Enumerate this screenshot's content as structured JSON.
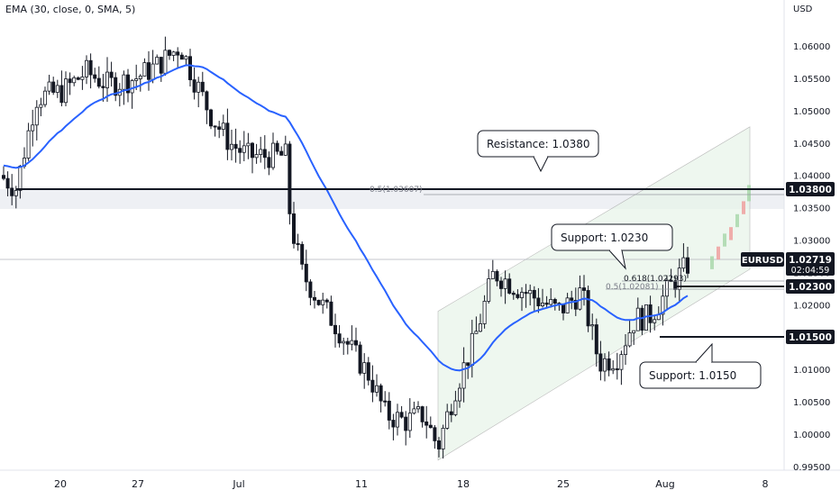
{
  "indicator": {
    "legend": "EMA (30, close, 0, SMA, 5)"
  },
  "price_axis": {
    "currency": "USD",
    "ticks": [
      "1.06000",
      "1.05500",
      "1.05000",
      "1.04500",
      "1.04000",
      "1.03500",
      "1.03000",
      "1.02500",
      "1.02000",
      "1.01500",
      "1.01000",
      "1.00500",
      "1.00000",
      "0.99500"
    ]
  },
  "time_axis": {
    "ticks": [
      "20",
      "27",
      "Jul",
      "11",
      "18",
      "25",
      "Aug",
      "8"
    ]
  },
  "symbol": {
    "name": "EURUSD",
    "price": "1.02719",
    "countdown": "02:04:59",
    "color": "#131722"
  },
  "levels": [
    {
      "label": "1.03800",
      "value": 1.038
    },
    {
      "label": "1.02300",
      "value": 1.023
    },
    {
      "label": "1.01500",
      "value": 1.015
    }
  ],
  "callouts": {
    "resistance": "Resistance: 1.0380",
    "support_upper": "Support: 1.0230",
    "support_lower": "Support: 1.0150"
  },
  "fib_labels": {
    "left_half": "0.5(1.03607)",
    "right_618": "0.618(1.02293)",
    "right_half": "0.5(1.02081)"
  },
  "colors": {
    "candle": "#131722",
    "ema": "#2962ff",
    "channel_fill": "#e8f5e9",
    "zone_fill": "#e0e3eb",
    "projection_up": "#a5d6a7",
    "projection_down": "#ef9a9a"
  },
  "chart_data": {
    "type": "candlestick",
    "ylim": [
      0.9945,
      1.0645
    ],
    "ema_series": {
      "name": "EMA (30, close, 0, SMA, 5)",
      "period": 30
    },
    "candles": [],
    "resistance": 1.038,
    "supports": [
      1.023,
      1.015
    ],
    "channel": {
      "lower_start": 0.996,
      "lower_end": 1.0255,
      "upper_start": 1.019,
      "upper_end": 1.0475
    }
  }
}
